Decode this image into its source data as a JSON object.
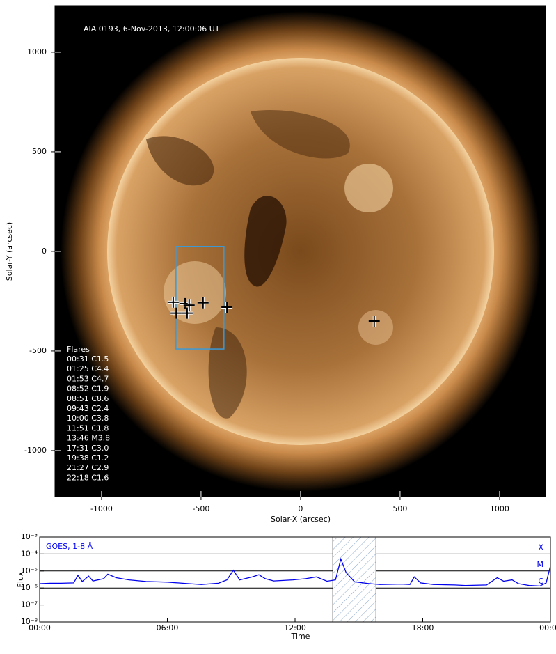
{
  "chart_data": [
    {
      "type": "scatter",
      "title": "AIA 0193, 6-Nov-2013, 12:00:06 UT",
      "x_label": "Solar-X (arcsec)",
      "y_label": "Solar-Y (arcsec)",
      "xlim": [
        -1234,
        1231
      ],
      "ylim": [
        -1231,
        1234
      ],
      "xticks": [
        -1000,
        -500,
        0,
        500,
        1000
      ],
      "yticks": [
        -1000,
        -500,
        0,
        500,
        1000
      ],
      "x": [
        -640,
        -580,
        -560,
        -625,
        -570,
        -490,
        -370,
        370
      ],
      "y": [
        -255,
        -262,
        -270,
        -310,
        -310,
        -258,
        -280,
        -350
      ],
      "box": {
        "x": [
          -626,
          -385
        ],
        "y": [
          -490,
          25
        ],
        "color": "#3a9ad9"
      },
      "legend_title": "Flares",
      "flares": [
        "00:31 C1.5",
        "01:25 C4.4",
        "01:53 C4.7",
        "08:52 C1.9",
        "08:51 C8.6",
        "09:43 C2.4",
        "10:00 C3.8",
        "11:51 C1.8",
        "13:46 M3.8",
        "17:31 C3.0",
        "19:38 C1.2",
        "21:27 C2.9",
        "22:18 C1.6"
      ]
    },
    {
      "type": "line",
      "title": "GOES, 1-8 Å",
      "x_label": "Time",
      "y_label": "Flux",
      "log_y": true,
      "xlim": [
        0,
        24
      ],
      "ylim": [
        1e-08,
        0.001
      ],
      "xticks": [
        {
          "value": 0,
          "label": "00:00"
        },
        {
          "value": 6,
          "label": "06:00"
        },
        {
          "value": 12,
          "label": "12:00"
        },
        {
          "value": 18,
          "label": "18:00"
        },
        {
          "value": 24,
          "label": "00:00"
        }
      ],
      "yticks": [
        {
          "value": 1e-08,
          "label": "10⁻⁸"
        },
        {
          "value": 1e-07,
          "label": "10⁻⁷"
        },
        {
          "value": 1e-06,
          "label": "10⁻⁶"
        },
        {
          "value": 1e-05,
          "label": "10⁻⁵"
        },
        {
          "value": 0.0001,
          "label": "10⁻⁴"
        },
        {
          "value": 0.001,
          "label": "10⁻³"
        }
      ],
      "levels": [
        {
          "value": 0.0001,
          "label": "X"
        },
        {
          "value": 1e-05,
          "label": "M"
        },
        {
          "value": 1e-06,
          "label": "C"
        }
      ],
      "highlight": [
        13.77,
        15.8
      ],
      "series": [
        {
          "name": "GOES, 1-8 Å",
          "color": "#0000ee",
          "x": [
            0,
            0.5,
            1.0,
            1.6,
            1.8,
            2.0,
            2.3,
            2.5,
            3.0,
            3.2,
            3.6,
            4.2,
            5,
            6,
            7,
            7.6,
            8.4,
            8.8,
            9.1,
            9.4,
            10.0,
            10.3,
            10.6,
            11,
            11.9,
            12.5,
            13.0,
            13.5,
            13.9,
            14.15,
            14.4,
            14.8,
            15.5,
            16,
            17,
            17.4,
            17.6,
            17.9,
            18.5,
            19.5,
            20,
            21,
            21.5,
            21.8,
            22.2,
            22.5,
            23,
            23.5,
            23.8,
            24
          ],
          "values": [
            1.8e-06,
            1.9e-06,
            1.9e-06,
            2e-06,
            5.5e-06,
            2.4e-06,
            5e-06,
            2.6e-06,
            3.5e-06,
            6.5e-06,
            4e-06,
            3e-06,
            2.4e-06,
            2.2e-06,
            1.8e-06,
            1.6e-06,
            1.9e-06,
            3e-06,
            1.1e-05,
            3e-06,
            4.5e-06,
            6e-06,
            3.5e-06,
            2.6e-06,
            3e-06,
            3.5e-06,
            4.5e-06,
            2.5e-06,
            3e-06,
            5e-05,
            8e-06,
            2.3e-06,
            1.8e-06,
            1.6e-06,
            1.7e-06,
            1.6e-06,
            4.5e-06,
            2e-06,
            1.6e-06,
            1.5e-06,
            1.4e-06,
            1.5e-06,
            4e-06,
            2.5e-06,
            3e-06,
            1.8e-06,
            1.4e-06,
            1.3e-06,
            2e-06,
            2e-05
          ]
        }
      ]
    }
  ]
}
